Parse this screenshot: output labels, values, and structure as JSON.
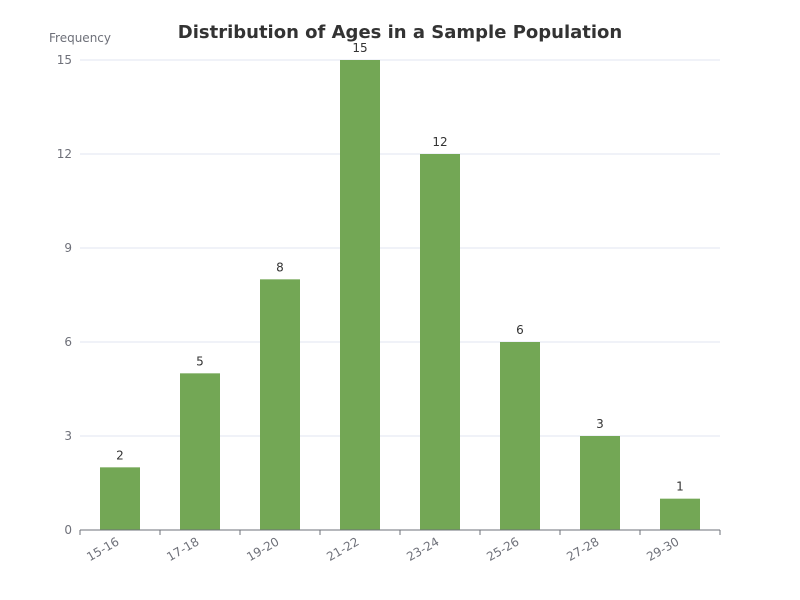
{
  "chart_data": {
    "type": "bar",
    "title": "Distribution of Ages in a Sample Population",
    "xlabel": "",
    "ylabel": "Frequency",
    "categories": [
      "15-16",
      "17-18",
      "19-20",
      "21-22",
      "23-24",
      "25-26",
      "27-28",
      "29-30"
    ],
    "values": [
      2,
      5,
      8,
      15,
      12,
      6,
      3,
      1
    ],
    "ylim": [
      0,
      15
    ],
    "yticks": [
      0,
      3,
      6,
      9,
      12,
      15
    ],
    "grid": true,
    "legend": "none",
    "show_data_labels": true,
    "bar_color": "#73a755"
  }
}
